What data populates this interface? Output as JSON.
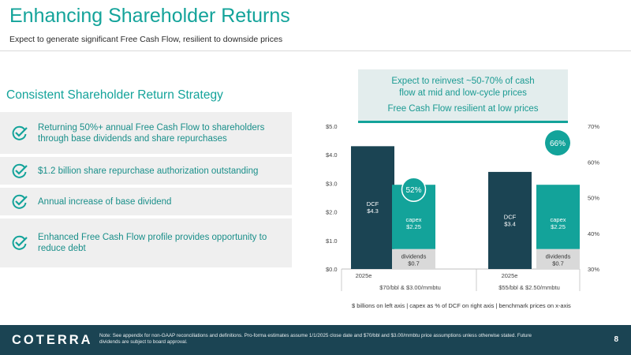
{
  "header": {
    "title": "Enhancing Shareholder Returns",
    "subtitle": "Expect to generate significant Free Cash Flow, resilient to downside prices"
  },
  "strategy": {
    "title": "Consistent Shareholder Return Strategy",
    "items": [
      {
        "line1": "Returning 50%+ annual Free Cash Flow to shareholders",
        "line2": "through base dividends and share repurchases"
      },
      {
        "line1": "$1.2 billion share repurchase authorization outstanding",
        "line2": ""
      },
      {
        "line1": "Annual increase of base dividend",
        "line2": ""
      },
      {
        "line1": "Enhanced Free Cash Flow profile provides opportunity to",
        "line2": "reduce debt"
      }
    ],
    "icon": "check-circle-icon",
    "accent_color": "#13a39a"
  },
  "callout": {
    "line1": "Expect to reinvest ~50-70% of cash",
    "line2": "flow at mid and low-cycle prices",
    "line3": "Free Cash Flow resilient at low prices"
  },
  "chart_data": {
    "type": "bar",
    "left_axis": {
      "ticks": [
        "$0.0",
        "$1.0",
        "$2.0",
        "$3.0",
        "$4.0",
        "$5.0"
      ],
      "ylim": [
        0,
        5
      ]
    },
    "right_axis": {
      "ticks": [
        "30%",
        "40%",
        "50%",
        "60%",
        "70%"
      ],
      "ylim": [
        30,
        70
      ]
    },
    "groups": [
      {
        "category": "2025e",
        "price_label": "$70/bbl & $3.00/mmbtu",
        "dcf": {
          "value": 4.3,
          "label1": "DCF",
          "label2": "$4.3"
        },
        "capex": {
          "value": 2.25,
          "label1": "capex",
          "label2": "$2.25"
        },
        "dividends": {
          "value": 0.7,
          "label1": "dividends",
          "label2": "$0.7"
        },
        "capex_pct_label": "52%"
      },
      {
        "category": "2025e",
        "price_label": "$55/bbl & $2.50/mmbtu",
        "dcf": {
          "value": 3.4,
          "label1": "DCF",
          "label2": "$3.4"
        },
        "capex": {
          "value": 2.25,
          "label1": "capex",
          "label2": "$2.25"
        },
        "dividends": {
          "value": 0.7,
          "label1": "dividends",
          "label2": "$0.7"
        },
        "capex_pct_label": "66%"
      }
    ],
    "colors": {
      "dcf": "#1b4453",
      "capex": "#13a39a",
      "dividends": "#d9d9d9",
      "bubble": "#13a39a"
    }
  },
  "footnote": "$ billions on left axis  |  capex as % of DCF on right axis  |  benchmark prices on x-axis",
  "footer": {
    "logo": "COTERRA",
    "note_line1": "Note: See appendix for non-GAAP reconciliations and definitions. Pro-forma estimates assume 1/1/2025 close date and $70/bbl and $3.00/mmbtu price assumptions unless otherwise stated. Future",
    "note_line2": "dividends are subject to board approval.",
    "page_number": "8"
  }
}
